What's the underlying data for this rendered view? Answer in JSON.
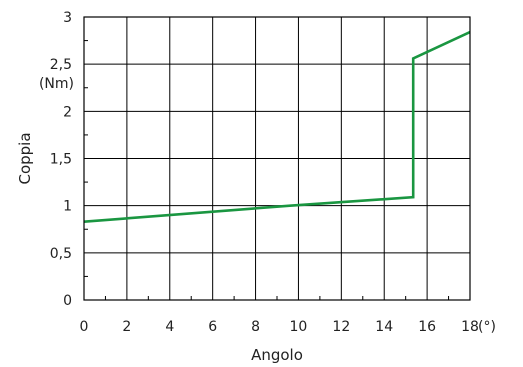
{
  "chart_data": {
    "type": "line",
    "xlabel": "Angolo",
    "ylabel": "Coppia",
    "x_unit": "(°)",
    "y_unit": "(Nm)",
    "xlim": [
      0,
      18
    ],
    "ylim": [
      0,
      3
    ],
    "x_ticks": [
      "0",
      "2",
      "4",
      "6",
      "8",
      "10",
      "12",
      "14",
      "16",
      "18"
    ],
    "y_ticks": [
      "0",
      "0,5",
      "1",
      "1,5",
      "2",
      "2,5",
      "3"
    ],
    "grid": true,
    "series": [
      {
        "color": "#1a9641",
        "x": [
          0,
          9.6,
          15.35,
          15.35,
          18
        ],
        "y": [
          0.83,
          1.0,
          1.09,
          2.56,
          2.84
        ]
      }
    ]
  }
}
